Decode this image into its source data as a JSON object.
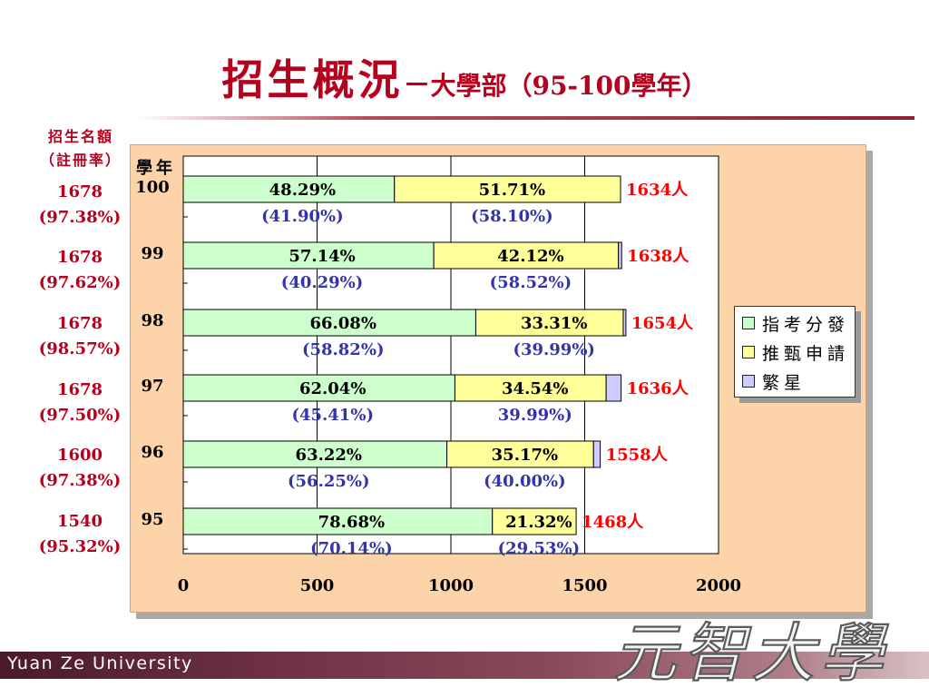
{
  "title": {
    "main": "招生概況",
    "dash": "－",
    "sub": "大學部（95-100學年）"
  },
  "quota_header": [
    "招生名額",
    "（註冊率）"
  ],
  "quotas": [
    {
      "count": "1678",
      "rate": "(97.38%)"
    },
    {
      "count": "1678",
      "rate": "(97.62%)"
    },
    {
      "count": "1678",
      "rate": "(98.57%)"
    },
    {
      "count": "1678",
      "rate": "(97.50%)"
    },
    {
      "count": "1600",
      "rate": "(97.38%)"
    },
    {
      "count": "1540",
      "rate": "(95.32%)"
    }
  ],
  "footer": {
    "university": "Yuan Ze University",
    "logo_text": "元智大學"
  },
  "colors": {
    "title": "#b5001e",
    "panel": "#fdd4aa",
    "series_0": "#ccffcc",
    "series_1": "#ffff99",
    "series_2": "#ccccff",
    "total_label": "#ff0000",
    "secondary_label": "#3333aa"
  },
  "chart_data": {
    "type": "bar",
    "orientation": "horizontal",
    "stacked": true,
    "category_axis_label": "學年",
    "categories": [
      "100",
      "99",
      "98",
      "97",
      "96",
      "95"
    ],
    "series": [
      {
        "name": "指考分發",
        "values": [
          789,
          936,
          1093,
          1015,
          985,
          1155
        ],
        "labels": [
          "48.29%",
          "57.14%",
          "66.08%",
          "62.04%",
          "63.22%",
          "78.68%"
        ],
        "secondary_labels": [
          "(41.90%)",
          "(40.29%)",
          "(58.82%)",
          "(45.41%)",
          "(56.25%)",
          "(70.14%)"
        ]
      },
      {
        "name": "推甄申請",
        "values": [
          845,
          690,
          551,
          565,
          548,
          313
        ],
        "labels": [
          "51.71%",
          "42.12%",
          "33.31%",
          "34.54%",
          "35.17%",
          "21.32%"
        ],
        "secondary_labels": [
          "(58.10%)",
          "(58.52%)",
          "(39.99%)",
          "39.99%)",
          "(40.00%)",
          "(29.53%)"
        ]
      },
      {
        "name": "繁星",
        "values": [
          0,
          12,
          10,
          56,
          25,
          0
        ]
      }
    ],
    "totals": [
      "1634人",
      "1638人",
      "1654人",
      "1636人",
      "1558人",
      "1468人"
    ],
    "xlim": [
      0,
      2000
    ],
    "xticks": [
      "0",
      "500",
      "1000",
      "1500",
      "2000"
    ],
    "grid": true,
    "legend_position": "right"
  }
}
